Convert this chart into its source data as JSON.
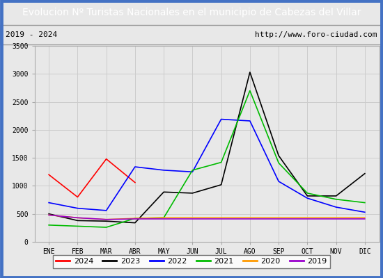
{
  "title": "Evolucion Nº Turistas Nacionales en el municipio de Cabezas del Villar",
  "subtitle_left": "2019 - 2024",
  "subtitle_right": "http://www.foro-ciudad.com",
  "title_bg": "#4472c4",
  "title_color": "white",
  "months": [
    "ENE",
    "FEB",
    "MAR",
    "ABR",
    "MAY",
    "JUN",
    "JUL",
    "AGO",
    "SEP",
    "OCT",
    "NOV",
    "DIC"
  ],
  "ylim": [
    0,
    3500
  ],
  "yticks": [
    0,
    500,
    1000,
    1500,
    2000,
    2500,
    3000,
    3500
  ],
  "series": {
    "2024": {
      "color": "#ff0000",
      "values": [
        1200,
        800,
        1480,
        1060,
        null,
        null,
        null,
        null,
        null,
        null,
        null,
        null
      ]
    },
    "2023": {
      "color": "#000000",
      "values": [
        500,
        380,
        370,
        340,
        890,
        870,
        1020,
        3030,
        1540,
        820,
        820,
        1220
      ]
    },
    "2022": {
      "color": "#0000ff",
      "values": [
        700,
        600,
        560,
        1340,
        1280,
        1250,
        2190,
        2160,
        1080,
        780,
        620,
        530
      ]
    },
    "2021": {
      "color": "#00bb00",
      "values": [
        300,
        280,
        260,
        420,
        430,
        1280,
        1420,
        2700,
        1410,
        870,
        760,
        700
      ]
    },
    "2020": {
      "color": "#ff9900",
      "values": [
        480,
        430,
        400,
        420,
        430,
        430,
        430,
        430,
        430,
        430,
        430,
        430
      ]
    },
    "2019": {
      "color": "#9900cc",
      "values": [
        480,
        430,
        400,
        410,
        410,
        410,
        410,
        410,
        410,
        410,
        410,
        410
      ]
    }
  },
  "legend_order": [
    "2024",
    "2023",
    "2022",
    "2021",
    "2020",
    "2019"
  ],
  "background_color": "#e8e8e8",
  "plot_bg": "#ffffff",
  "plot_inner_bg": "#e8e8e8",
  "grid_color": "#cccccc",
  "title_fontsize": 10,
  "tick_fontsize": 7,
  "border_color": "#4472c4"
}
